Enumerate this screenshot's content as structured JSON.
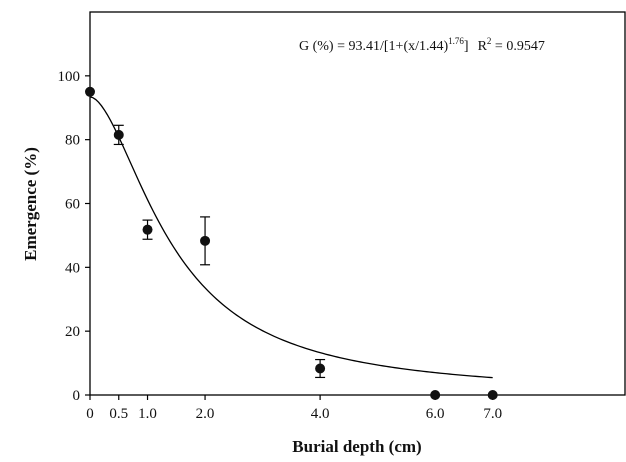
{
  "chart_data": {
    "type": "scatter",
    "xlabel": "Burial depth (cm)",
    "ylabel": "Emergence (%)",
    "xlim": [
      0,
      9.3
    ],
    "ylim": [
      0,
      120
    ],
    "x_ticks": [
      0,
      0.5,
      1.0,
      2.0,
      4.0,
      6.0,
      7.0
    ],
    "x_tick_labels": [
      "0",
      "0.5",
      "1.0",
      "2.0",
      "4.0",
      "6.0",
      "7.0"
    ],
    "y_ticks": [
      0,
      20,
      40,
      60,
      80,
      100
    ],
    "y_tick_labels": [
      "0",
      "20",
      "40",
      "60",
      "80",
      "100"
    ],
    "grid": false,
    "series": [
      {
        "x": [
          0,
          0.5,
          1.0,
          2.0,
          4.0,
          6.0,
          7.0
        ],
        "y": [
          95,
          81.5,
          51.8,
          48.3,
          8.3,
          0,
          0
        ],
        "error": [
          0,
          3,
          3,
          7.5,
          2.8,
          0,
          0
        ]
      }
    ],
    "fit": {
      "equation": "G (%) = 93.41/[1+(x/1.44)",
      "exponent": "1.76",
      "equation_end": "]",
      "r2_prefix": "R",
      "r2_sup": "2",
      "r2_value": " = 0.9547",
      "a": 93.41,
      "x0": 1.44,
      "b": 1.76,
      "x_range": [
        0,
        7.0
      ]
    }
  }
}
